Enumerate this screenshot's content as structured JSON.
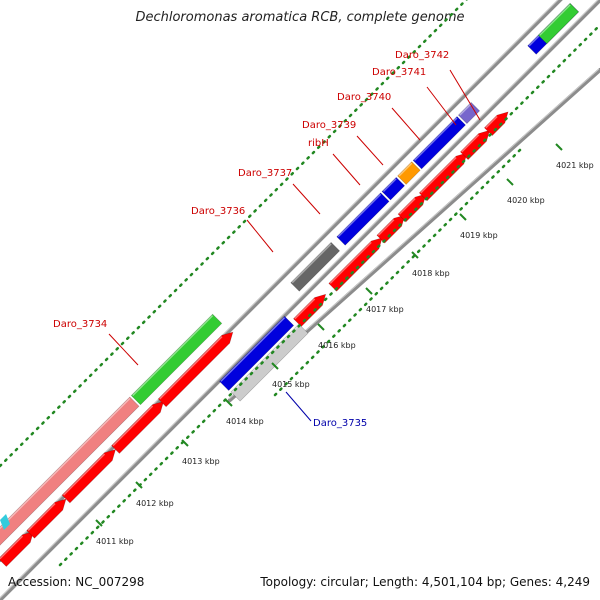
{
  "title": "Dechloromonas aromatica RCB, complete genome",
  "accession": "Accession: NC_007298",
  "summary": "Topology: circular; Length: 4,501,104 bp; Genes: 4,249",
  "colors": {
    "backbone": "#8c8c8c",
    "cds": "#ff0000",
    "gene_blue": "#0000dd",
    "gene_green": "#33cc33",
    "gene_pink": "#f08080",
    "gene_gray": "#cccccc",
    "gene_dark": "#666666",
    "gene_orange": "#ff9900",
    "gene_purple": "#7766cc",
    "label_red": "#cc0000",
    "label_blue": "#0000aa",
    "tick": "#228822"
  },
  "scale_labels": [
    "4011 kbp",
    "4012 kbp",
    "4013 kbp",
    "4014 kbp",
    "4015 kbp",
    "4016 kbp",
    "4017 kbp",
    "4018 kbp",
    "4019 kbp",
    "4020 kbp",
    "4021 kbp"
  ],
  "gene_labels": [
    {
      "text": "Daro_3742",
      "color": "label_red"
    },
    {
      "text": "Daro_3741",
      "color": "label_red"
    },
    {
      "text": "Daro_3740",
      "color": "label_red"
    },
    {
      "text": "Daro_3739",
      "color": "label_red"
    },
    {
      "text": "ribH",
      "color": "label_red"
    },
    {
      "text": "Daro_3737",
      "color": "label_red"
    },
    {
      "text": "Daro_3736",
      "color": "label_red"
    },
    {
      "text": "Daro_3734",
      "color": "label_red"
    },
    {
      "text": "Daro_3735",
      "color": "label_blue"
    }
  ]
}
